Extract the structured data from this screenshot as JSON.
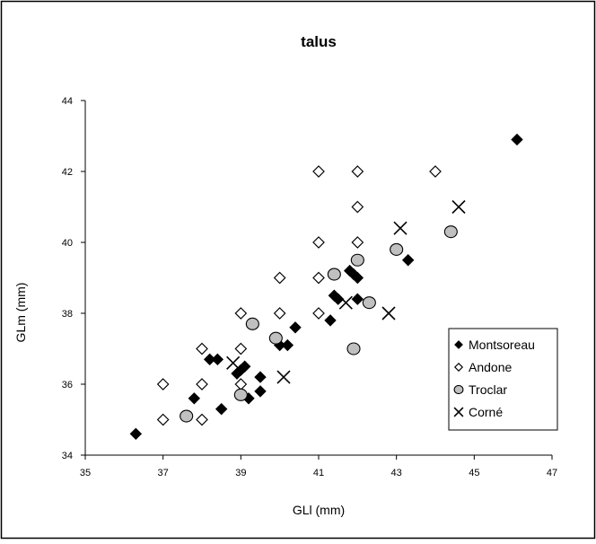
{
  "chart_data": {
    "type": "scatter",
    "title": "talus",
    "xlabel": "GLl (mm)",
    "ylabel": "GLm (mm)",
    "xlim": [
      35,
      47
    ],
    "ylim": [
      34,
      44
    ],
    "x_ticks": [
      35,
      37,
      39,
      41,
      43,
      45,
      47
    ],
    "y_ticks": [
      34,
      36,
      38,
      40,
      42,
      44
    ],
    "grid": false,
    "legend_position": "right",
    "series": [
      {
        "name": "Montsoreau",
        "marker": "filled-diamond",
        "color": "#000000",
        "points": [
          {
            "x": 36.3,
            "y": 34.6
          },
          {
            "x": 37.8,
            "y": 35.6
          },
          {
            "x": 38.2,
            "y": 36.7
          },
          {
            "x": 38.4,
            "y": 36.7
          },
          {
            "x": 38.5,
            "y": 35.3
          },
          {
            "x": 38.9,
            "y": 36.3
          },
          {
            "x": 39.0,
            "y": 36.4
          },
          {
            "x": 39.1,
            "y": 36.5
          },
          {
            "x": 39.2,
            "y": 35.6
          },
          {
            "x": 39.5,
            "y": 36.2
          },
          {
            "x": 39.5,
            "y": 35.8
          },
          {
            "x": 40.0,
            "y": 37.1
          },
          {
            "x": 40.2,
            "y": 37.1
          },
          {
            "x": 40.4,
            "y": 37.6
          },
          {
            "x": 41.3,
            "y": 37.8
          },
          {
            "x": 41.4,
            "y": 38.5
          },
          {
            "x": 41.5,
            "y": 38.4
          },
          {
            "x": 41.8,
            "y": 39.2
          },
          {
            "x": 41.9,
            "y": 39.1
          },
          {
            "x": 42.0,
            "y": 39.0
          },
          {
            "x": 42.0,
            "y": 38.4
          },
          {
            "x": 43.3,
            "y": 39.5
          },
          {
            "x": 46.1,
            "y": 42.9
          }
        ]
      },
      {
        "name": "Andone",
        "marker": "open-diamond",
        "color": "#000000",
        "points": [
          {
            "x": 37.0,
            "y": 36.0
          },
          {
            "x": 37.0,
            "y": 35.0
          },
          {
            "x": 38.0,
            "y": 37.0
          },
          {
            "x": 38.0,
            "y": 36.0
          },
          {
            "x": 38.0,
            "y": 35.0
          },
          {
            "x": 39.0,
            "y": 38.0
          },
          {
            "x": 39.0,
            "y": 37.0
          },
          {
            "x": 39.0,
            "y": 36.0
          },
          {
            "x": 40.0,
            "y": 39.0
          },
          {
            "x": 40.0,
            "y": 38.0
          },
          {
            "x": 41.0,
            "y": 42.0
          },
          {
            "x": 41.0,
            "y": 40.0
          },
          {
            "x": 41.0,
            "y": 39.0
          },
          {
            "x": 41.0,
            "y": 38.0
          },
          {
            "x": 42.0,
            "y": 42.0
          },
          {
            "x": 42.0,
            "y": 41.0
          },
          {
            "x": 42.0,
            "y": 40.0
          },
          {
            "x": 44.0,
            "y": 42.0
          }
        ]
      },
      {
        "name": "Troclar",
        "marker": "grey-circle",
        "color": "#c0c0c0",
        "points": [
          {
            "x": 37.6,
            "y": 35.1
          },
          {
            "x": 39.0,
            "y": 35.7
          },
          {
            "x": 39.3,
            "y": 37.7
          },
          {
            "x": 39.9,
            "y": 37.3
          },
          {
            "x": 41.4,
            "y": 39.1
          },
          {
            "x": 41.9,
            "y": 37.0
          },
          {
            "x": 42.0,
            "y": 39.5
          },
          {
            "x": 42.3,
            "y": 38.3
          },
          {
            "x": 43.0,
            "y": 39.8
          },
          {
            "x": 44.4,
            "y": 40.3
          }
        ]
      },
      {
        "name": "Corné",
        "marker": "x",
        "color": "#000000",
        "points": [
          {
            "x": 38.8,
            "y": 36.6
          },
          {
            "x": 40.1,
            "y": 36.2
          },
          {
            "x": 41.7,
            "y": 38.3
          },
          {
            "x": 42.8,
            "y": 38.0
          },
          {
            "x": 43.1,
            "y": 40.4
          },
          {
            "x": 44.6,
            "y": 41.0
          }
        ]
      }
    ]
  }
}
